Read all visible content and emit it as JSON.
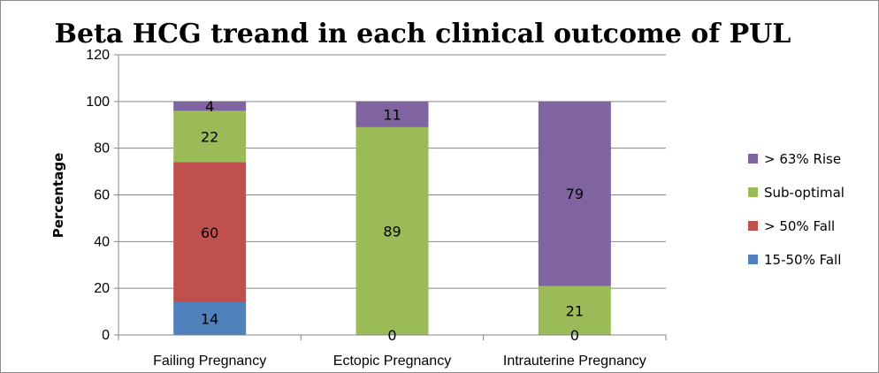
{
  "chart_data": {
    "type": "bar",
    "stacked": true,
    "title": "Beta HCG treand in each clinical outcome of PUL",
    "xlabel": "",
    "ylabel": "Percentage",
    "ylim": [
      0,
      120
    ],
    "yticks": [
      0,
      20,
      40,
      60,
      80,
      100,
      120
    ],
    "grid": true,
    "legend_position": "right",
    "categories": [
      "Failing Pregnancy",
      "Ectopic Pregnancy",
      "Intrauterine Pregnancy"
    ],
    "series": [
      {
        "name": "15-50% Fall",
        "color": "#4f81bd",
        "values": [
          14,
          0,
          0
        ],
        "labels": [
          "14",
          "0",
          "0"
        ]
      },
      {
        "name": "> 50% Fall",
        "color": "#c0504d",
        "values": [
          60,
          0,
          0
        ],
        "labels": [
          "60",
          "",
          ""
        ]
      },
      {
        "name": "Sub-optimal",
        "color": "#9bbb59",
        "values": [
          22,
          89,
          21
        ],
        "labels": [
          "22",
          "89",
          "21"
        ]
      },
      {
        "name": "> 63% Rise",
        "color": "#8064a2",
        "values": [
          4,
          11,
          79
        ],
        "labels": [
          "4",
          "11",
          "79"
        ]
      }
    ]
  }
}
